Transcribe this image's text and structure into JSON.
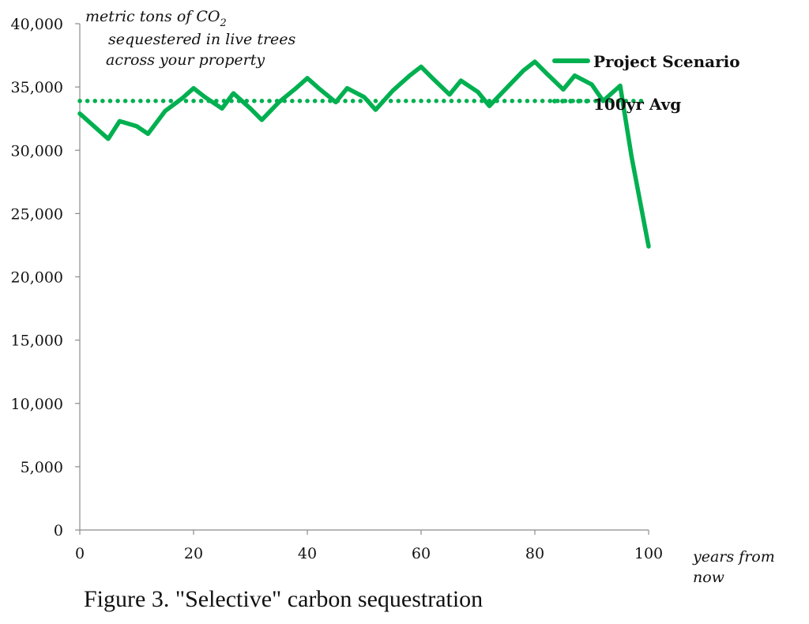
{
  "chart_data": {
    "type": "line",
    "caption": "Figure 3. \"Selective\" carbon sequestration",
    "ylabel": {
      "lines": [
        "metric tons of CO",
        "sequestered in live trees",
        "across your property"
      ],
      "subscript": "2"
    },
    "xlabel": {
      "lines": [
        "years from",
        "now"
      ]
    },
    "xlim": [
      0,
      100
    ],
    "ylim": [
      0,
      40000
    ],
    "x_ticks": [
      0,
      20,
      40,
      60,
      80,
      100
    ],
    "x_tick_labels": [
      "0",
      "20",
      "40",
      "60",
      "80",
      "100"
    ],
    "y_ticks": [
      0,
      5000,
      10000,
      15000,
      20000,
      25000,
      30000,
      35000,
      40000
    ],
    "y_tick_labels": [
      "0",
      "5,000",
      "10,000",
      "15,000",
      "20,000",
      "25,000",
      "30,000",
      "35,000",
      "40,000"
    ],
    "grid": false,
    "legend_position": "top-right",
    "series": [
      {
        "name": "Project Scenario",
        "style": "solid",
        "color": "#00b050",
        "x": [
          0,
          5,
          7,
          10,
          12,
          15,
          18,
          20,
          22,
          25,
          27,
          30,
          32,
          35,
          38,
          40,
          42,
          45,
          47,
          50,
          52,
          55,
          58,
          60,
          62,
          65,
          67,
          70,
          72,
          75,
          78,
          80,
          82,
          85,
          87,
          90,
          92,
          95,
          97,
          100
        ],
        "values": [
          32900,
          30900,
          32300,
          31900,
          31300,
          33100,
          34100,
          34900,
          34200,
          33300,
          34500,
          33300,
          32400,
          33800,
          34900,
          35700,
          34900,
          33800,
          34900,
          34200,
          33200,
          34700,
          35900,
          36600,
          35700,
          34400,
          35500,
          34600,
          33500,
          34900,
          36300,
          37000,
          36100,
          34800,
          35900,
          35200,
          33900,
          35100,
          29500,
          22400
        ]
      },
      {
        "name": "100yr Avg",
        "style": "dotted",
        "color": "#00b050",
        "x": [
          0,
          100
        ],
        "values": [
          33900,
          33900
        ]
      }
    ]
  }
}
